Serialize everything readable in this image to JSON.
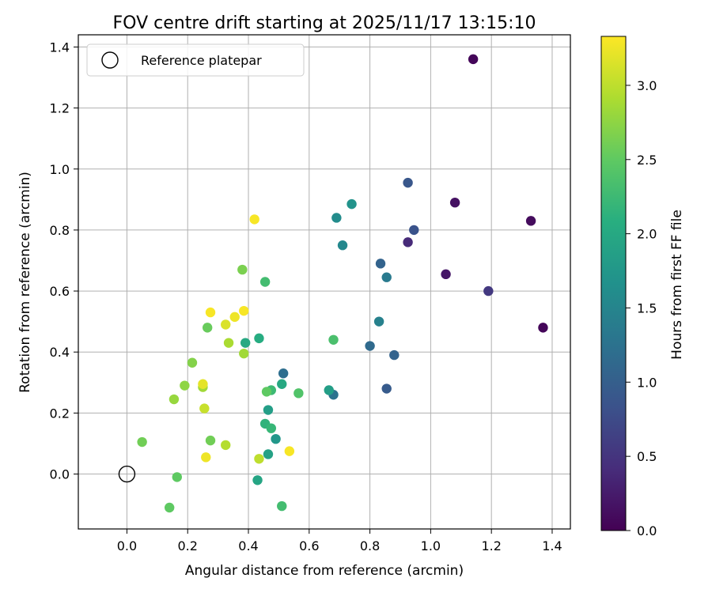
{
  "chart_data": {
    "type": "scatter",
    "title": "FOV centre drift starting at 2025/11/17 13:15:10",
    "xlabel": "Angular distance from reference (arcmin)",
    "ylabel": "Rotation from reference (arcmin)",
    "xlim": [
      -0.16,
      1.46
    ],
    "ylim": [
      -0.18,
      1.44
    ],
    "grid": true,
    "x_ticks": [
      "0.0",
      "0.2",
      "0.4",
      "0.6",
      "0.8",
      "1.0",
      "1.2",
      "1.4"
    ],
    "x_tick_values": [
      0.0,
      0.2,
      0.4,
      0.6,
      0.8,
      1.0,
      1.2,
      1.4
    ],
    "y_ticks": [
      "0.0",
      "0.2",
      "0.4",
      "0.6",
      "0.8",
      "1.0",
      "1.2",
      "1.4"
    ],
    "y_tick_values": [
      0.0,
      0.2,
      0.4,
      0.6,
      0.8,
      1.0,
      1.2,
      1.4
    ],
    "legend": {
      "placement": "top-left",
      "entries": [
        {
          "label": "Reference platepar",
          "marker": "open-circle",
          "color": "#000000"
        }
      ]
    },
    "reference_point": {
      "x": 0.0,
      "y": 0.0
    },
    "colorbar": {
      "label": "Hours from first FF file",
      "colormap": "viridis",
      "range": [
        0.0,
        3.33
      ],
      "ticks": [
        "0.0",
        "0.5",
        "1.0",
        "1.5",
        "2.0",
        "2.5",
        "3.0"
      ],
      "tick_values": [
        0.0,
        0.5,
        1.0,
        1.5,
        2.0,
        2.5,
        3.0
      ]
    },
    "points": [
      {
        "x": 1.14,
        "y": 1.36,
        "c": 0.05
      },
      {
        "x": 1.37,
        "y": 0.48,
        "c": 0.05
      },
      {
        "x": 1.33,
        "y": 0.83,
        "c": 0.1
      },
      {
        "x": 1.08,
        "y": 0.89,
        "c": 0.15
      },
      {
        "x": 1.05,
        "y": 0.655,
        "c": 0.2
      },
      {
        "x": 0.925,
        "y": 0.76,
        "c": 0.4
      },
      {
        "x": 1.19,
        "y": 0.6,
        "c": 0.55
      },
      {
        "x": 0.945,
        "y": 0.8,
        "c": 0.85
      },
      {
        "x": 0.925,
        "y": 0.955,
        "c": 0.9
      },
      {
        "x": 0.855,
        "y": 0.28,
        "c": 0.95
      },
      {
        "x": 0.88,
        "y": 0.39,
        "c": 1.05
      },
      {
        "x": 0.835,
        "y": 0.69,
        "c": 1.05
      },
      {
        "x": 0.8,
        "y": 0.42,
        "c": 1.15
      },
      {
        "x": 0.515,
        "y": 0.33,
        "c": 1.2
      },
      {
        "x": 0.68,
        "y": 0.26,
        "c": 1.25
      },
      {
        "x": 0.855,
        "y": 0.645,
        "c": 1.35
      },
      {
        "x": 0.83,
        "y": 0.5,
        "c": 1.45
      },
      {
        "x": 0.71,
        "y": 0.75,
        "c": 1.55
      },
      {
        "x": 0.69,
        "y": 0.84,
        "c": 1.6
      },
      {
        "x": 0.74,
        "y": 0.885,
        "c": 1.7
      },
      {
        "x": 0.49,
        "y": 0.115,
        "c": 1.75
      },
      {
        "x": 0.665,
        "y": 0.275,
        "c": 1.85
      },
      {
        "x": 0.465,
        "y": 0.21,
        "c": 1.85
      },
      {
        "x": 0.465,
        "y": 0.065,
        "c": 1.9
      },
      {
        "x": 0.43,
        "y": -0.02,
        "c": 1.95
      },
      {
        "x": 0.51,
        "y": 0.295,
        "c": 2.0
      },
      {
        "x": 0.39,
        "y": 0.43,
        "c": 2.0
      },
      {
        "x": 0.435,
        "y": 0.445,
        "c": 2.05
      },
      {
        "x": 0.455,
        "y": 0.165,
        "c": 2.15
      },
      {
        "x": 0.475,
        "y": 0.15,
        "c": 2.2
      },
      {
        "x": 0.475,
        "y": 0.275,
        "c": 2.25
      },
      {
        "x": 0.455,
        "y": 0.63,
        "c": 2.3
      },
      {
        "x": 0.51,
        "y": -0.105,
        "c": 2.3
      },
      {
        "x": 0.68,
        "y": 0.44,
        "c": 2.35
      },
      {
        "x": 0.565,
        "y": 0.265,
        "c": 2.4
      },
      {
        "x": 0.46,
        "y": 0.27,
        "c": 2.5
      },
      {
        "x": 0.14,
        "y": -0.11,
        "c": 2.5
      },
      {
        "x": 0.165,
        "y": -0.01,
        "c": 2.5
      },
      {
        "x": 0.265,
        "y": 0.48,
        "c": 2.55
      },
      {
        "x": 0.275,
        "y": 0.11,
        "c": 2.6
      },
      {
        "x": 0.05,
        "y": 0.105,
        "c": 2.6
      },
      {
        "x": 0.38,
        "y": 0.67,
        "c": 2.65
      },
      {
        "x": 0.215,
        "y": 0.365,
        "c": 2.7
      },
      {
        "x": 0.19,
        "y": 0.29,
        "c": 2.75
      },
      {
        "x": 0.155,
        "y": 0.245,
        "c": 2.8
      },
      {
        "x": 0.25,
        "y": 0.285,
        "c": 2.85
      },
      {
        "x": 0.385,
        "y": 0.395,
        "c": 2.85
      },
      {
        "x": 0.335,
        "y": 0.43,
        "c": 2.9
      },
      {
        "x": 0.325,
        "y": 0.095,
        "c": 2.95
      },
      {
        "x": 0.435,
        "y": 0.05,
        "c": 3.0
      },
      {
        "x": 0.255,
        "y": 0.215,
        "c": 3.05
      },
      {
        "x": 0.325,
        "y": 0.49,
        "c": 3.15
      },
      {
        "x": 0.25,
        "y": 0.295,
        "c": 3.2
      },
      {
        "x": 0.26,
        "y": 0.055,
        "c": 3.25
      },
      {
        "x": 0.355,
        "y": 0.515,
        "c": 3.25
      },
      {
        "x": 0.385,
        "y": 0.535,
        "c": 3.3
      },
      {
        "x": 0.275,
        "y": 0.53,
        "c": 3.3
      },
      {
        "x": 0.42,
        "y": 0.835,
        "c": 3.3
      },
      {
        "x": 0.535,
        "y": 0.075,
        "c": 3.3
      }
    ]
  }
}
